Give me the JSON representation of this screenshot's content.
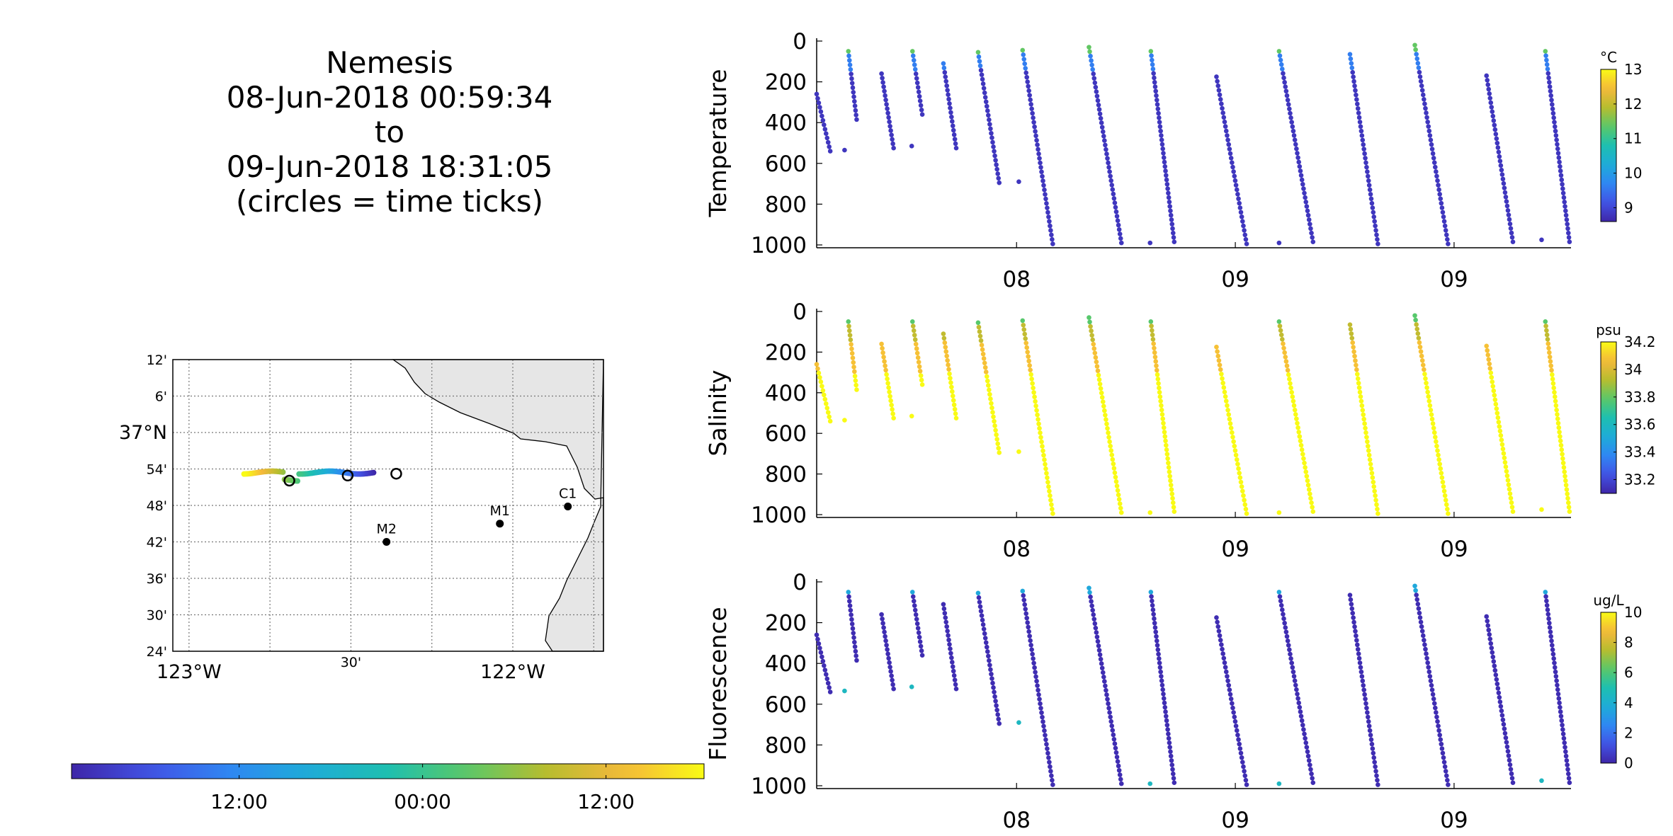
{
  "header": {
    "lines": [
      "Nemesis",
      "08-Jun-2018 00:59:34",
      "to",
      "09-Jun-2018 18:31:05",
      "(circles = time ticks)"
    ]
  },
  "colors": {
    "land": "#e6e6e6",
    "marker": "#000000",
    "colormap": [
      "#3e26a8",
      "#4253e5",
      "#2f87f2",
      "#1eacd8",
      "#1ebfb0",
      "#5ac868",
      "#b7bd2f",
      "#f5b83b",
      "#f9fb15"
    ]
  },
  "map": {
    "lon_ticks": [
      -123.0,
      -122.75,
      -122.5,
      -122.25,
      -122.0,
      -121.75
    ],
    "lon_labels": [
      "123°W",
      "",
      "30'",
      "",
      "122°W",
      ""
    ],
    "lat_ticks": [
      37.2,
      37.1,
      37.0,
      36.9,
      36.8,
      36.7,
      36.6,
      36.5,
      36.4
    ],
    "lat_labels": [
      "12'",
      "6'",
      "37°N",
      "54'",
      "48'",
      "42'",
      "36'",
      "30'",
      "24'"
    ],
    "lon_range": [
      -123.05,
      -121.72
    ],
    "lat_range": [
      36.4,
      37.2
    ],
    "stations": [
      {
        "name": "C1",
        "lon": -121.83,
        "lat": 36.797
      },
      {
        "name": "M1",
        "lon": -122.04,
        "lat": 36.75
      },
      {
        "name": "M2",
        "lon": -122.39,
        "lat": 36.7
      }
    ],
    "track": {
      "lon_start": -122.43,
      "lon_mid1": -122.6,
      "lon_mid2": -122.68,
      "lon_end": -122.83,
      "lat": 36.89
    },
    "time_circles": [
      {
        "lon": -122.36,
        "lat": 36.887
      },
      {
        "lon": -122.51,
        "lat": 36.882
      },
      {
        "lon": -122.69,
        "lat": 36.868
      }
    ]
  },
  "time_colorbar": {
    "tick_labels": [
      "12:00",
      "00:00",
      "12:00"
    ],
    "tick_fractions": [
      0.265,
      0.555,
      0.845
    ]
  },
  "chart_data": [
    {
      "type": "scatter",
      "title": "",
      "ylabel": "Temperature",
      "ylim": [
        0,
        1000
      ],
      "yticks": [
        0,
        200,
        400,
        600,
        800,
        1000
      ],
      "xtick_labels": [
        "08",
        "09",
        "09"
      ],
      "colorbar": {
        "unit": "°C",
        "ticks": [
          "13",
          "12",
          "11",
          "10",
          "9"
        ],
        "range": [
          8.6,
          13.0
        ]
      },
      "surface_value": 11.2,
      "deep_value": 8.8
    },
    {
      "type": "scatter",
      "title": "",
      "ylabel": "Salinity",
      "ylim": [
        0,
        1000
      ],
      "yticks": [
        0,
        200,
        400,
        600,
        800,
        1000
      ],
      "xtick_labels": [
        "08",
        "09",
        "09"
      ],
      "colorbar": {
        "unit": "psu",
        "ticks": [
          "34.2",
          "34",
          "33.8",
          "33.6",
          "33.4",
          "33.2"
        ],
        "range": [
          33.1,
          34.2
        ]
      },
      "surface_value": 33.8,
      "deep_value": 34.2
    },
    {
      "type": "scatter",
      "title": "",
      "ylabel": "Fluorescence",
      "ylim": [
        0,
        1000
      ],
      "yticks": [
        0,
        200,
        400,
        600,
        800,
        1000
      ],
      "xtick_labels": [
        "08",
        "09",
        "09"
      ],
      "colorbar": {
        "unit": "ug/L",
        "ticks": [
          "10",
          "8",
          "6",
          "4",
          "2",
          "0"
        ],
        "range": [
          0,
          10
        ]
      },
      "surface_value": 0.3,
      "deep_value": 0.2
    }
  ],
  "profiles": [
    {
      "x0": 0.0,
      "d0": 260,
      "x1": 0.018,
      "d1": 540
    },
    {
      "x0": 0.042,
      "d0": 50,
      "x1": 0.053,
      "d1": 385
    },
    {
      "x0": 0.086,
      "d0": 160,
      "x1": 0.102,
      "d1": 525
    },
    {
      "x0": 0.127,
      "d0": 50,
      "x1": 0.14,
      "d1": 360
    },
    {
      "x0": 0.168,
      "d0": 110,
      "x1": 0.185,
      "d1": 525
    },
    {
      "x0": 0.214,
      "d0": 55,
      "x1": 0.242,
      "d1": 695
    },
    {
      "x0": 0.273,
      "d0": 45,
      "x1": 0.313,
      "d1": 995
    },
    {
      "x0": 0.361,
      "d0": 30,
      "x1": 0.404,
      "d1": 990
    },
    {
      "x0": 0.443,
      "d0": 50,
      "x1": 0.474,
      "d1": 985
    },
    {
      "x0": 0.53,
      "d0": 175,
      "x1": 0.57,
      "d1": 995
    },
    {
      "x0": 0.613,
      "d0": 50,
      "x1": 0.658,
      "d1": 985
    },
    {
      "x0": 0.707,
      "d0": 65,
      "x1": 0.744,
      "d1": 995
    },
    {
      "x0": 0.793,
      "d0": 20,
      "x1": 0.837,
      "d1": 995
    },
    {
      "x0": 0.888,
      "d0": 170,
      "x1": 0.923,
      "d1": 985
    },
    {
      "x0": 0.966,
      "d0": 50,
      "x1": 0.998,
      "d1": 985
    }
  ],
  "isolated_points": [
    {
      "x": 0.037,
      "d": 535
    },
    {
      "x": 0.126,
      "d": 515
    },
    {
      "x": 0.268,
      "d": 690
    },
    {
      "x": 0.442,
      "d": 990
    },
    {
      "x": 0.613,
      "d": 990
    },
    {
      "x": 0.961,
      "d": 975
    }
  ]
}
